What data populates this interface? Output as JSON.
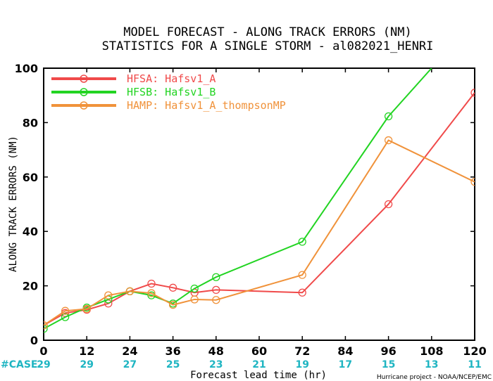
{
  "chart_data": {
    "type": "line",
    "title": "MODEL FORECAST - ALONG TRACK ERRORS (NM)",
    "subtitle": "STATISTICS FOR A SINGLE STORM - al082021_HENRI",
    "xlabel": "Forecast lead time (hr)",
    "ylabel": "ALONG TRACK ERRORS (NM)",
    "xlim": [
      0,
      120
    ],
    "ylim": [
      0,
      100
    ],
    "xticks": [
      0,
      12,
      24,
      36,
      48,
      60,
      72,
      84,
      96,
      108,
      120
    ],
    "yticks": [
      0,
      20,
      40,
      60,
      80,
      100
    ],
    "grid": false,
    "legend_position": "top-left",
    "series": [
      {
        "name": "HFSA: Hafsv1_A",
        "color": "#f04a4a",
        "x": [
          0,
          6,
          12,
          18,
          24,
          30,
          36,
          42,
          48,
          72,
          96,
          120
        ],
        "y": [
          5.5,
          10,
          11.2,
          13.5,
          18,
          20.8,
          19.3,
          17.5,
          18.5,
          17.5,
          50,
          91
        ]
      },
      {
        "name": "HFSB: Hafsv1_B",
        "color": "#22d422",
        "x": [
          0,
          6,
          12,
          18,
          24,
          30,
          36,
          42,
          48,
          72,
          96,
          108
        ],
        "y": [
          4.2,
          8.5,
          12,
          15,
          18,
          16.5,
          13.5,
          19,
          23.2,
          36.2,
          82.3,
          100
        ]
      },
      {
        "name": "HAMP: Hafsv1_A_thompsonMP",
        "color": "#f0923a",
        "x": [
          0,
          6,
          12,
          18,
          24,
          30,
          36,
          42,
          48,
          72,
          96,
          120
        ],
        "y": [
          5.5,
          10.8,
          11.5,
          16.5,
          18,
          17.3,
          13,
          15,
          14.8,
          24,
          73.5,
          58.2
        ]
      }
    ],
    "case_counts": {
      "label": "#CASE",
      "x": [
        0,
        12,
        24,
        36,
        48,
        60,
        72,
        84,
        96,
        108,
        120
      ],
      "values": [
        "29",
        "29",
        "27",
        "25",
        "23",
        "21",
        "19",
        "17",
        "15",
        "13",
        "11"
      ]
    },
    "credit": "Hurricane project - NOAA/NCEP/EMC"
  }
}
